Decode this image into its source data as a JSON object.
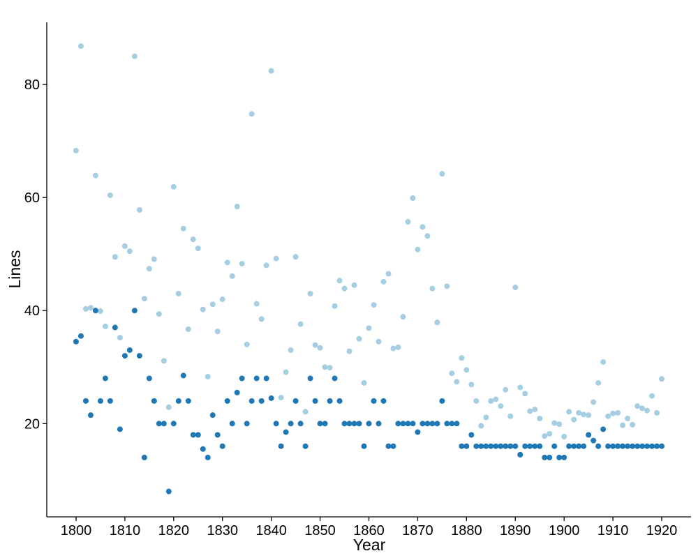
{
  "chart_data": {
    "type": "scatter",
    "xlabel": "Year",
    "ylabel": "Lines",
    "xlim": [
      1794,
      1926
    ],
    "ylim": [
      3.5,
      91
    ],
    "x_ticks": [
      1800,
      1810,
      1820,
      1830,
      1840,
      1850,
      1860,
      1870,
      1880,
      1890,
      1900,
      1910,
      1920
    ],
    "y_ticks": [
      20,
      40,
      60,
      80
    ],
    "grid": false,
    "legend": "none",
    "series": [
      {
        "color": "#a6cee3",
        "x": [
          1800,
          1801,
          1802,
          1803,
          1804,
          1805,
          1806,
          1807,
          1808,
          1809,
          1810,
          1811,
          1812,
          1813,
          1814,
          1815,
          1816,
          1817,
          1818,
          1819,
          1820,
          1821,
          1822,
          1823,
          1824,
          1825,
          1826,
          1827,
          1828,
          1829,
          1830,
          1831,
          1832,
          1833,
          1834,
          1835,
          1836,
          1837,
          1838,
          1839,
          1840,
          1841,
          1842,
          1843,
          1844,
          1845,
          1846,
          1847,
          1848,
          1849,
          1850,
          1851,
          1852,
          1853,
          1854,
          1855,
          1856,
          1857,
          1858,
          1859,
          1860,
          1861,
          1862,
          1863,
          1864,
          1865,
          1866,
          1867,
          1868,
          1869,
          1870,
          1871,
          1872,
          1873,
          1874,
          1875,
          1876,
          1877,
          1878,
          1879,
          1880,
          1881,
          1882,
          1883,
          1884,
          1885,
          1886,
          1887,
          1888,
          1889,
          1890,
          1891,
          1892,
          1893,
          1894,
          1895,
          1896,
          1897,
          1898,
          1899,
          1900,
          1901,
          1902,
          1903,
          1904,
          1905,
          1906,
          1907,
          1908,
          1909,
          1910,
          1911,
          1912,
          1913,
          1914,
          1915,
          1916,
          1917,
          1918,
          1919,
          1920
        ],
        "y": [
          68.3,
          86.8,
          40.3,
          40.5,
          63.9,
          39.9,
          37.2,
          60.4,
          49.5,
          35.2,
          51.4,
          50.5,
          85.0,
          57.8,
          42.1,
          47.4,
          49.1,
          39.4,
          31.1,
          22.9,
          61.9,
          43.0,
          54.5,
          36.7,
          52.6,
          51.0,
          40.2,
          28.3,
          41.1,
          36.3,
          42.0,
          48.5,
          46.1,
          58.4,
          48.3,
          34.0,
          74.8,
          41.2,
          38.5,
          48.0,
          82.4,
          49.2,
          24.6,
          29.1,
          33.0,
          49.5,
          37.6,
          22.1,
          43.0,
          33.9,
          33.4,
          30.0,
          29.9,
          40.8,
          45.3,
          43.9,
          32.8,
          44.5,
          35.0,
          27.2,
          36.9,
          41.0,
          34.5,
          45.1,
          46.5,
          33.3,
          33.5,
          38.9,
          55.7,
          59.9,
          50.8,
          54.8,
          53.2,
          43.9,
          37.9,
          64.2,
          44.3,
          28.9,
          27.4,
          31.6,
          29.5,
          26.9,
          24.0,
          19.6,
          21.1,
          24.0,
          24.3,
          23.1,
          26.0,
          21.3,
          44.1,
          26.4,
          25.3,
          22.2,
          22.5,
          20.9,
          17.8,
          18.2,
          20.1,
          19.9,
          17.7,
          22.1,
          20.7,
          21.9,
          21.6,
          21.5,
          23.8,
          27.2,
          30.9,
          21.3,
          21.8,
          21.9,
          19.7,
          20.9,
          19.8,
          23.1,
          22.7,
          22.3,
          24.9,
          21.9,
          27.9
        ]
      },
      {
        "color": "#1f78b4",
        "x": [
          1800,
          1801,
          1802,
          1803,
          1804,
          1805,
          1806,
          1807,
          1808,
          1809,
          1810,
          1811,
          1812,
          1813,
          1814,
          1815,
          1816,
          1817,
          1818,
          1819,
          1820,
          1821,
          1822,
          1823,
          1824,
          1825,
          1826,
          1827,
          1828,
          1829,
          1830,
          1831,
          1832,
          1833,
          1834,
          1835,
          1836,
          1837,
          1838,
          1839,
          1840,
          1841,
          1842,
          1843,
          1844,
          1845,
          1846,
          1847,
          1848,
          1849,
          1850,
          1851,
          1852,
          1853,
          1854,
          1855,
          1856,
          1857,
          1858,
          1859,
          1860,
          1861,
          1862,
          1863,
          1864,
          1865,
          1866,
          1867,
          1868,
          1869,
          1870,
          1871,
          1872,
          1873,
          1874,
          1875,
          1876,
          1877,
          1878,
          1879,
          1880,
          1881,
          1882,
          1883,
          1884,
          1885,
          1886,
          1887,
          1888,
          1889,
          1890,
          1891,
          1892,
          1893,
          1894,
          1895,
          1896,
          1897,
          1898,
          1899,
          1900,
          1901,
          1902,
          1903,
          1904,
          1905,
          1906,
          1907,
          1908,
          1909,
          1910,
          1911,
          1912,
          1913,
          1914,
          1915,
          1916,
          1917,
          1918,
          1919,
          1920
        ],
        "y": [
          34.5,
          35.5,
          24,
          21.5,
          40,
          24,
          28,
          24,
          37,
          19,
          32,
          33,
          40,
          32,
          14,
          28,
          24,
          20,
          20,
          8,
          20,
          24,
          28.5,
          24,
          18,
          18,
          15.5,
          14,
          21.5,
          18,
          16,
          24,
          20,
          25.5,
          28,
          20,
          24,
          28,
          24,
          28,
          24.5,
          20,
          16,
          18.5,
          20,
          24,
          20,
          16,
          28,
          24,
          20,
          20,
          24,
          28,
          24,
          20,
          20,
          20,
          20,
          16,
          20,
          24,
          20,
          24,
          16,
          16,
          20,
          20,
          20,
          20,
          18.5,
          20,
          20,
          20,
          20,
          24,
          20,
          20,
          20,
          16,
          16,
          18,
          16,
          16,
          16,
          16,
          16,
          16,
          16,
          16,
          16,
          14.5,
          16,
          16,
          16,
          16,
          14,
          14,
          16,
          14,
          14,
          16,
          16,
          16,
          16,
          18,
          17,
          16,
          19,
          16,
          16,
          16,
          16,
          16,
          16,
          16,
          16,
          16,
          16,
          16,
          16
        ]
      }
    ]
  }
}
